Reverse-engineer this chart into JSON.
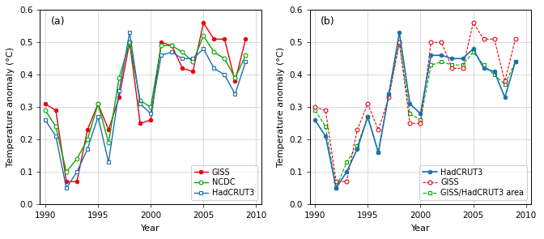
{
  "years": [
    1990,
    1991,
    1992,
    1993,
    1994,
    1995,
    1996,
    1997,
    1998,
    1999,
    2000,
    2001,
    2002,
    2003,
    2004,
    2005,
    2006,
    2007,
    2008,
    2009
  ],
  "panel_a": {
    "GISS": [
      0.31,
      0.29,
      0.07,
      0.07,
      0.23,
      0.31,
      0.23,
      0.33,
      0.5,
      0.25,
      0.26,
      0.5,
      0.49,
      0.42,
      0.41,
      0.56,
      0.51,
      0.51,
      0.38,
      0.51
    ],
    "NCDC": [
      0.29,
      0.24,
      0.1,
      0.14,
      0.2,
      0.31,
      0.19,
      0.39,
      0.5,
      0.32,
      0.3,
      0.49,
      0.49,
      0.47,
      0.44,
      0.52,
      0.47,
      0.45,
      0.39,
      0.46
    ],
    "HadCRUT3": [
      0.26,
      0.21,
      0.05,
      0.1,
      0.17,
      0.27,
      0.13,
      0.35,
      0.53,
      0.31,
      0.28,
      0.46,
      0.47,
      0.45,
      0.45,
      0.48,
      0.42,
      0.4,
      0.34,
      0.44
    ]
  },
  "panel_b": {
    "HadCRUT3": [
      0.26,
      0.21,
      0.05,
      0.1,
      0.17,
      0.27,
      0.16,
      0.34,
      0.53,
      0.31,
      0.28,
      0.46,
      0.46,
      0.45,
      0.45,
      0.48,
      0.42,
      0.41,
      0.33,
      0.44
    ],
    "GISS": [
      0.3,
      0.29,
      0.07,
      0.07,
      0.23,
      0.31,
      0.23,
      0.33,
      0.5,
      0.25,
      0.25,
      0.5,
      0.5,
      0.42,
      0.42,
      0.56,
      0.51,
      0.51,
      0.38,
      0.51
    ],
    "GISS_HadCRUT3": [
      0.29,
      0.24,
      0.05,
      0.13,
      0.18,
      0.27,
      0.16,
      0.34,
      0.5,
      0.28,
      0.26,
      0.43,
      0.44,
      0.43,
      0.43,
      0.47,
      0.43,
      0.4,
      0.37,
      0.44
    ]
  },
  "colors_a": {
    "GISS": "#e8000d",
    "NCDC": "#00aa00",
    "HadCRUT3": "#1a6faf"
  },
  "colors_b": {
    "HadCRUT3": "#1a6faf",
    "GISS": "#e8000d",
    "GISS_HadCRUT3": "#00aa00"
  },
  "ylim": [
    0.0,
    0.6
  ],
  "yticks": [
    0.0,
    0.1,
    0.2,
    0.3,
    0.4,
    0.5,
    0.6
  ],
  "xlim": [
    1989.5,
    2010.5
  ],
  "xticks": [
    1990,
    1995,
    2000,
    2005,
    2010
  ],
  "ylabel": "Temperature anomaly (°C)",
  "xlabel": "Year",
  "label_a": "(a)",
  "label_b": "(b)",
  "bg_color": "#ffffff",
  "grid_color": "#cccccc"
}
